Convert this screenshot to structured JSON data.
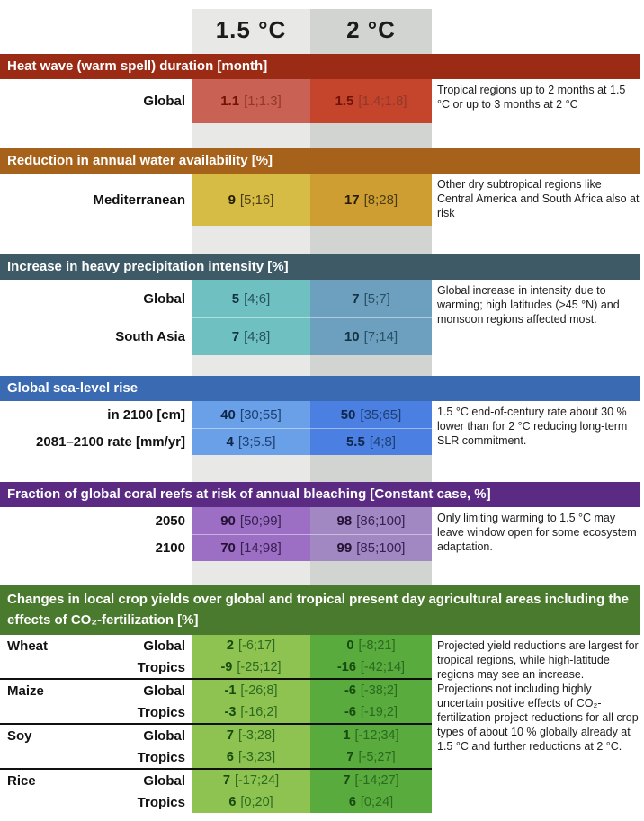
{
  "columns": {
    "c15": "1.5 °C",
    "c2": "2 °C"
  },
  "colors": {
    "column_15_band": "#e8e8e6",
    "column_2_band": "#d2d4d2",
    "background": "#ffffff"
  },
  "sections": [
    {
      "id": "heatwave",
      "title": "Heat wave (warm spell) duration [month]",
      "header_color": "#9b2b15",
      "cell_colors": {
        "c15": "#ca6155",
        "c2": "#c5442c"
      },
      "note": "Tropical regions up to 2 months at 1.5 °C or up to 3 months at 2 °C",
      "rows": [
        {
          "label": "Global",
          "c15": {
            "value": "1.1",
            "range": "[1;1.3]"
          },
          "c2": {
            "value": "1.5",
            "range": "[1.4;1.8]"
          }
        }
      ]
    },
    {
      "id": "water",
      "title": "Reduction in annual water availability [%]",
      "header_color": "#a6621b",
      "cell_colors": {
        "c15": "#d6bc45",
        "c2": "#cf9e33"
      },
      "note": "Other dry subtropical regions like Central America and South Africa also at risk",
      "rows": [
        {
          "label": "Mediterranean",
          "c15": {
            "value": "9",
            "range": "[5;16]"
          },
          "c2": {
            "value": "17",
            "range": "[8;28]"
          }
        }
      ]
    },
    {
      "id": "precipitation",
      "title": "Increase in heavy precipitation intensity [%]",
      "header_color": "#3d5a66",
      "cell_colors": {
        "c15": "#6fc0c0",
        "c2": "#6d9fbf"
      },
      "note": "Global increase in intensity due to warming; high latitudes (>45 °N) and monsoon regions affected most.",
      "rows": [
        {
          "label": "Global",
          "c15": {
            "value": "5",
            "range": "[4;6]"
          },
          "c2": {
            "value": "7",
            "range": "[5;7]"
          }
        },
        {
          "label": "South Asia",
          "c15": {
            "value": "7",
            "range": "[4;8]"
          },
          "c2": {
            "value": "10",
            "range": "[7;14]"
          }
        }
      ]
    },
    {
      "id": "sealevel",
      "title": "Global sea-level rise",
      "header_color": "#3a6ab2",
      "cell_colors": {
        "c15": "#69a0e8",
        "c2": "#4b7fe1"
      },
      "note": "1.5 °C end-of-century rate about 30 % lower than for 2 °C reducing long-term SLR commitment.",
      "rows": [
        {
          "label": "in 2100 [cm]",
          "c15": {
            "value": "40",
            "range": "[30;55]"
          },
          "c2": {
            "value": "50",
            "range": "[35;65]"
          }
        },
        {
          "label": "2081–2100 rate [mm/yr]",
          "c15": {
            "value": "4",
            "range": "[3;5.5]"
          },
          "c2": {
            "value": "5.5",
            "range": "[4;8]"
          }
        }
      ]
    },
    {
      "id": "coral",
      "title": "Fraction of global coral reefs at risk of annual bleaching [Constant case, %]",
      "header_color": "#5b2b84",
      "cell_colors": {
        "c15": "#9c6fc5",
        "c2": "#a188c3"
      },
      "note": "Only limiting warming to 1.5 °C may leave window open for some ecosystem adaptation.",
      "rows": [
        {
          "label": "2050",
          "c15": {
            "value": "90",
            "range": "[50;99]"
          },
          "c2": {
            "value": "98",
            "range": "[86;100]"
          }
        },
        {
          "label": "2100",
          "c15": {
            "value": "70",
            "range": "[14;98]"
          },
          "c2": {
            "value": "99",
            "range": "[85;100]"
          }
        }
      ]
    },
    {
      "id": "crops",
      "title": "Changes in local crop yields over global and tropical present day agricultural areas including the effects of CO₂-fertilization [%]",
      "header_color": "#4a7a2e",
      "cell_colors": {
        "c15": "#8ec351",
        "c2": "#58ab3c"
      },
      "note": "Projected yield reductions are largest for tropical regions, while high-latitude regions may see an increase. Projections not including highly uncertain positive effects of CO₂-fertilization project reductions for all crop types of about 10 % globally already at 1.5 °C and further reductions at 2 °C.",
      "groups": [
        {
          "crop": "Wheat",
          "rows": [
            {
              "label": "Global",
              "c15": {
                "value": "2",
                "range": "[-6;17]"
              },
              "c2": {
                "value": "0",
                "range": "[-8;21]"
              }
            },
            {
              "label": "Tropics",
              "c15": {
                "value": "-9",
                "range": "[-25;12]"
              },
              "c2": {
                "value": "-16",
                "range": "[-42;14]"
              }
            }
          ]
        },
        {
          "crop": "Maize",
          "rows": [
            {
              "label": "Global",
              "c15": {
                "value": "-1",
                "range": "[-26;8]"
              },
              "c2": {
                "value": "-6",
                "range": "[-38;2]"
              }
            },
            {
              "label": "Tropics",
              "c15": {
                "value": "-3",
                "range": "[-16;2]"
              },
              "c2": {
                "value": "-6",
                "range": "[-19;2]"
              }
            }
          ]
        },
        {
          "crop": "Soy",
          "rows": [
            {
              "label": "Global",
              "c15": {
                "value": "7",
                "range": "[-3;28]"
              },
              "c2": {
                "value": "1",
                "range": "[-12;34]"
              }
            },
            {
              "label": "Tropics",
              "c15": {
                "value": "6",
                "range": "[-3;23]"
              },
              "c2": {
                "value": "7",
                "range": "[-5;27]"
              }
            }
          ]
        },
        {
          "crop": "Rice",
          "rows": [
            {
              "label": "Global",
              "c15": {
                "value": "7",
                "range": "[-17;24]"
              },
              "c2": {
                "value": "7",
                "range": "[-14;27]"
              }
            },
            {
              "label": "Tropics",
              "c15": {
                "value": "6",
                "range": "[0;20]"
              },
              "c2": {
                "value": "6",
                "range": "[0;24]"
              }
            }
          ]
        }
      ]
    }
  ],
  "chart_data": {
    "type": "table",
    "columns": [
      "1.5 °C",
      "2 °C"
    ],
    "sections": [
      {
        "title": "Heat wave (warm spell) duration [month]",
        "rows": [
          [
            "Global",
            "1.1 [1;1.3]",
            "1.5 [1.4;1.8]"
          ]
        ],
        "note": "Tropical regions up to 2 months at 1.5 °C or up to 3 months at 2 °C"
      },
      {
        "title": "Reduction in annual water availability [%]",
        "rows": [
          [
            "Mediterranean",
            "9 [5;16]",
            "17 [8;28]"
          ]
        ],
        "note": "Other dry subtropical regions like Central America and South Africa also at risk"
      },
      {
        "title": "Increase in heavy precipitation intensity [%]",
        "rows": [
          [
            "Global",
            "5 [4;6]",
            "7 [5;7]"
          ],
          [
            "South Asia",
            "7 [4;8]",
            "10 [7;14]"
          ]
        ],
        "note": "Global increase in intensity due to warming; high latitudes (>45 °N) and monsoon regions affected most."
      },
      {
        "title": "Global sea-level rise",
        "rows": [
          [
            "in 2100 [cm]",
            "40 [30;55]",
            "50 [35;65]"
          ],
          [
            "2081–2100 rate [mm/yr]",
            "4 [3;5.5]",
            "5.5 [4;8]"
          ]
        ],
        "note": "1.5 °C end-of-century rate about 30 % lower than for 2 °C reducing long-term SLR commitment."
      },
      {
        "title": "Fraction of global coral reefs at risk of annual bleaching [Constant case, %]",
        "rows": [
          [
            "2050",
            "90 [50;99]",
            "98 [86;100]"
          ],
          [
            "2100",
            "70 [14;98]",
            "99 [85;100]"
          ]
        ],
        "note": "Only limiting warming to 1.5 °C may leave window open for some ecosystem adaptation."
      },
      {
        "title": "Changes in local crop yields over global and tropical present day agricultural areas including the effects of CO₂-fertilization [%]",
        "rows": [
          [
            "Wheat Global",
            "2 [-6;17]",
            "0 [-8;21]"
          ],
          [
            "Wheat Tropics",
            "-9 [-25;12]",
            "-16 [-42;14]"
          ],
          [
            "Maize Global",
            "-1 [-26;8]",
            "-6 [-38;2]"
          ],
          [
            "Maize Tropics",
            "-3 [-16;2]",
            "-6 [-19;2]"
          ],
          [
            "Soy Global",
            "7 [-3;28]",
            "1 [-12;34]"
          ],
          [
            "Soy Tropics",
            "6 [-3;23]",
            "7 [-5;27]"
          ],
          [
            "Rice Global",
            "7 [-17;24]",
            "7 [-14;27]"
          ],
          [
            "Rice Tropics",
            "6 [0;20]",
            "6 [0;24]"
          ]
        ],
        "note": "Projected yield reductions are largest for tropical regions, while high-latitude regions may see an increase. Projections not including highly uncertain positive effects of CO₂-fertilization project reductions for all crop types of about 10 % globally already at 1.5 °C and further reductions at 2 °C."
      }
    ]
  }
}
